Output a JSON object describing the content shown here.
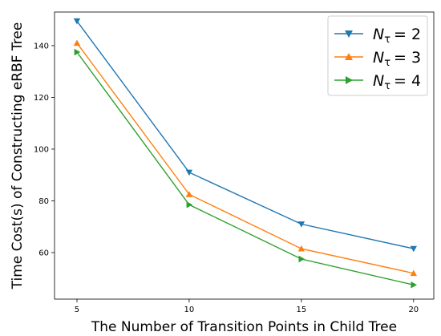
{
  "chart_data": {
    "type": "line",
    "title": "",
    "xlabel": "The Number of Transition Points in Child Tree",
    "ylabel": "Time Cost(s) of Constructing eRBF Tree",
    "x": [
      5,
      10,
      15,
      20
    ],
    "xlim": [
      4.0,
      20.9
    ],
    "ylim": [
      42,
      153
    ],
    "xticks": [
      5,
      10,
      15,
      20
    ],
    "yticks": [
      60,
      80,
      100,
      120,
      140
    ],
    "grid": false,
    "legend_position": "top-right",
    "series": [
      {
        "name": "N_τ = 2",
        "sym": "N",
        "sub": "τ",
        "val": "= 2",
        "color": "#1f77b4",
        "marker": "triangle-down",
        "values": [
          149.5,
          91,
          71,
          61.5
        ]
      },
      {
        "name": "N_τ = 3",
        "sym": "N",
        "sub": "τ",
        "val": "= 3",
        "color": "#ff7f0e",
        "marker": "triangle-up",
        "values": [
          141,
          82.5,
          61.5,
          52
        ]
      },
      {
        "name": "N_τ = 4",
        "sym": "N",
        "sub": "τ",
        "val": "= 4",
        "color": "#2ca02c",
        "marker": "triangle-right",
        "values": [
          137.5,
          78.5,
          57.5,
          47.5
        ]
      }
    ]
  }
}
